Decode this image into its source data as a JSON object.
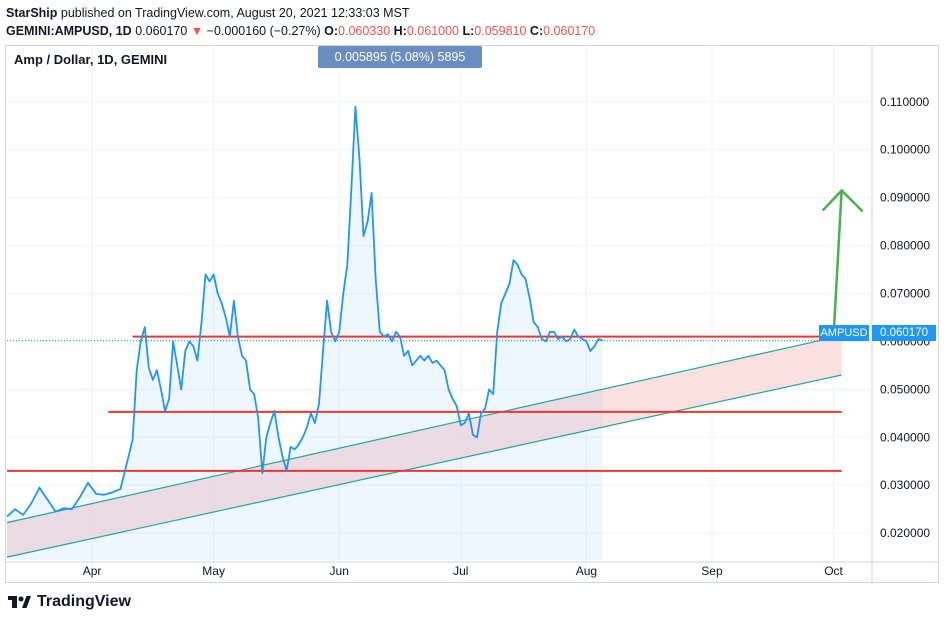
{
  "header": {
    "author": "StarShip",
    "published_text": "published on TradingView.com, August 20, 2021 12:33:03 MST",
    "symbol": "GEMINI:AMPUSD, 1D",
    "last": "0.060170",
    "arrow": "▼",
    "change": "−0.000160 (−0.27%)",
    "o_label": "O:",
    "o_val": "0.060330",
    "h_label": "H:",
    "h_val": "0.061000",
    "l_label": "L:",
    "l_val": "0.059810",
    "c_label": "C:",
    "c_val": "0.060170"
  },
  "chart_title": "Amp / Dollar, 1D, GEMINI",
  "measure_label": "0.005895 (5.08%) 5895",
  "symbol_tag": "AMPUSD",
  "price_tag": "0.060170",
  "brand": "TradingView",
  "colors": {
    "line": "#2196f3",
    "horizontal_lines": "#e53935",
    "channel_lines": "#26a69a",
    "channel_fill": "#fbd9d9",
    "arrow": "#4caf50",
    "tag": "#2196f3"
  },
  "chart_data": {
    "type": "line",
    "title": "Amp / Dollar, 1D, GEMINI",
    "y_ticks": [
      "0.110000",
      "0.100000",
      "0.090000",
      "0.080000",
      "0.070000",
      "0.060000",
      "0.050000",
      "0.040000",
      "0.030000",
      "0.020000"
    ],
    "y_tick_values": [
      0.11,
      0.1,
      0.09,
      0.08,
      0.07,
      0.06,
      0.05,
      0.04,
      0.03,
      0.02
    ],
    "ylim": [
      0.0144,
      0.1183
    ],
    "x_ticks": [
      {
        "label": "Apr",
        "day": 31
      },
      {
        "label": "May",
        "day": 61
      },
      {
        "label": "Jun",
        "day": 92
      },
      {
        "label": "Jul",
        "day": 122
      },
      {
        "label": "Aug",
        "day": 153
      },
      {
        "label": "Sep",
        "day": 184
      },
      {
        "label": "Oct",
        "day": 214
      }
    ],
    "xlim": [
      10,
      223
    ],
    "series": [
      {
        "name": "AMPUSD",
        "points": [
          [
            10,
            0.0235
          ],
          [
            12,
            0.025
          ],
          [
            14,
            0.0238
          ],
          [
            16,
            0.0262
          ],
          [
            18,
            0.0295
          ],
          [
            20,
            0.027
          ],
          [
            22,
            0.0245
          ],
          [
            24,
            0.0252
          ],
          [
            26,
            0.025
          ],
          [
            28,
            0.0275
          ],
          [
            30,
            0.0305
          ],
          [
            32,
            0.0282
          ],
          [
            34,
            0.028
          ],
          [
            36,
            0.0285
          ],
          [
            38,
            0.0292
          ],
          [
            40,
            0.036
          ],
          [
            41,
            0.0395
          ],
          [
            42,
            0.054
          ],
          [
            43,
            0.06
          ],
          [
            44,
            0.063
          ],
          [
            45,
            0.0545
          ],
          [
            46,
            0.052
          ],
          [
            47,
            0.054
          ],
          [
            48,
            0.05
          ],
          [
            49,
            0.0455
          ],
          [
            50,
            0.048
          ],
          [
            51,
            0.06
          ],
          [
            52,
            0.055
          ],
          [
            53,
            0.05
          ],
          [
            54,
            0.058
          ],
          [
            55,
            0.06
          ],
          [
            56,
            0.059
          ],
          [
            57,
            0.056
          ],
          [
            58,
            0.064
          ],
          [
            59,
            0.074
          ],
          [
            60,
            0.0725
          ],
          [
            61,
            0.074
          ],
          [
            62,
            0.07
          ],
          [
            63,
            0.068
          ],
          [
            64,
            0.065
          ],
          [
            65,
            0.061
          ],
          [
            66,
            0.0685
          ],
          [
            67,
            0.061
          ],
          [
            68,
            0.057
          ],
          [
            69,
            0.056
          ],
          [
            70,
            0.05
          ],
          [
            71,
            0.049
          ],
          [
            72,
            0.044
          ],
          [
            73,
            0.0325
          ],
          [
            74,
            0.04
          ],
          [
            75,
            0.043
          ],
          [
            76,
            0.0455
          ],
          [
            77,
            0.04
          ],
          [
            78,
            0.036
          ],
          [
            79,
            0.033
          ],
          [
            80,
            0.038
          ],
          [
            81,
            0.0375
          ],
          [
            82,
            0.0385
          ],
          [
            83,
            0.04
          ],
          [
            84,
            0.042
          ],
          [
            85,
            0.045
          ],
          [
            86,
            0.043
          ],
          [
            87,
            0.047
          ],
          [
            88,
            0.058
          ],
          [
            89,
            0.0685
          ],
          [
            90,
            0.062
          ],
          [
            91,
            0.06
          ],
          [
            92,
            0.062
          ],
          [
            93,
            0.07
          ],
          [
            94,
            0.076
          ],
          [
            95,
            0.092
          ],
          [
            96,
            0.109
          ],
          [
            97,
            0.098
          ],
          [
            98,
            0.082
          ],
          [
            99,
            0.085
          ],
          [
            100,
            0.091
          ],
          [
            101,
            0.073
          ],
          [
            102,
            0.062
          ],
          [
            103,
            0.061
          ],
          [
            104,
            0.0615
          ],
          [
            105,
            0.06
          ],
          [
            106,
            0.062
          ],
          [
            107,
            0.061
          ],
          [
            108,
            0.057
          ],
          [
            109,
            0.058
          ],
          [
            110,
            0.055
          ],
          [
            111,
            0.056
          ],
          [
            112,
            0.057
          ],
          [
            113,
            0.056
          ],
          [
            114,
            0.057
          ],
          [
            115,
            0.0555
          ],
          [
            116,
            0.056
          ],
          [
            117,
            0.055
          ],
          [
            118,
            0.054
          ],
          [
            119,
            0.05
          ],
          [
            120,
            0.048
          ],
          [
            121,
            0.0465
          ],
          [
            122,
            0.0425
          ],
          [
            123,
            0.043
          ],
          [
            124,
            0.045
          ],
          [
            125,
            0.0405
          ],
          [
            126,
            0.04
          ],
          [
            127,
            0.045
          ],
          [
            128,
            0.046
          ],
          [
            129,
            0.05
          ],
          [
            130,
            0.049
          ],
          [
            131,
            0.062
          ],
          [
            132,
            0.068
          ],
          [
            133,
            0.07
          ],
          [
            134,
            0.072
          ],
          [
            135,
            0.077
          ],
          [
            136,
            0.076
          ],
          [
            137,
            0.074
          ],
          [
            138,
            0.073
          ],
          [
            139,
            0.069
          ],
          [
            140,
            0.064
          ],
          [
            141,
            0.063
          ],
          [
            142,
            0.0605
          ],
          [
            143,
            0.06
          ],
          [
            144,
            0.062
          ],
          [
            145,
            0.062
          ],
          [
            146,
            0.0605
          ],
          [
            147,
            0.061
          ],
          [
            148,
            0.06
          ],
          [
            149,
            0.0605
          ],
          [
            150,
            0.0625
          ],
          [
            151,
            0.061
          ],
          [
            152,
            0.0605
          ],
          [
            153,
            0.06
          ],
          [
            154,
            0.058
          ],
          [
            155,
            0.059
          ],
          [
            156,
            0.0605
          ],
          [
            157,
            0.0602
          ]
        ]
      }
    ],
    "horizontal_levels": [
      {
        "value": 0.061,
        "from_day": 41,
        "to_day": 216
      },
      {
        "value": 0.0453,
        "from_day": 35,
        "to_day": 216
      },
      {
        "value": 0.033,
        "from_day": 10,
        "to_day": 216
      }
    ],
    "channel": {
      "upper": [
        [
          10,
          0.0222
        ],
        [
          216,
          0.0612
        ]
      ],
      "lower": [
        [
          10,
          0.015
        ],
        [
          216,
          0.053
        ]
      ]
    },
    "projection_arrow": {
      "from": [
        214,
        0.061
      ],
      "to": [
        216,
        0.0915
      ]
    },
    "last_value": 0.06017
  }
}
